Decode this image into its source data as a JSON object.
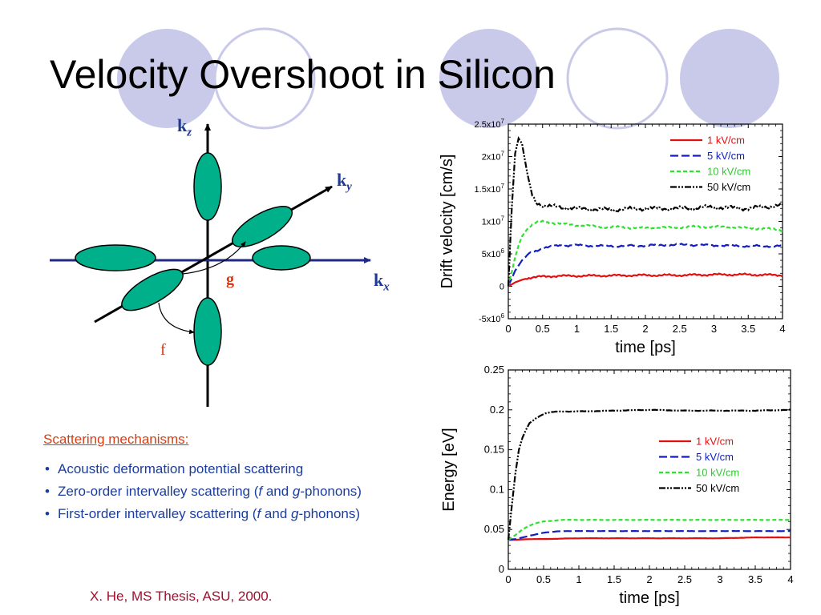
{
  "slide": {
    "title": "Velocity Overshoot in Silicon"
  },
  "diagram": {
    "axes": {
      "kz": "k",
      "kz_sub": "z",
      "ky": "k",
      "ky_sub": "y",
      "kx": "k",
      "kx_sub": "x"
    },
    "g_label": "g",
    "f_label": "f",
    "colors": {
      "valley_fill": "#00b08a",
      "axis": "#1f2a86",
      "label": "#1f3a93",
      "process": "#d43a12"
    }
  },
  "scattering": {
    "heading": "Scattering mechanisms:",
    "items": [
      {
        "text_a": "Acoustic deformation potential scattering",
        "italic_f": "",
        "text_b": "",
        "italic_g": "",
        "text_c": ""
      },
      {
        "text_a": "Zero-order intervalley scattering (",
        "italic_f": "f",
        "text_b": " and ",
        "italic_g": "g",
        "text_c": "-phonons)"
      },
      {
        "text_a": "First-order intervalley scattering (",
        "italic_f": "f",
        "text_b": " and ",
        "italic_g": "g",
        "text_c": "-phonons)"
      }
    ]
  },
  "citation": "X. He, MS Thesis, ASU, 2000.",
  "chart_data": [
    {
      "type": "line",
      "xlabel": "time  [ps]",
      "ylabel": "Drift velocity  [cm/s]",
      "xlim": [
        0,
        4
      ],
      "ylim": [
        -5000000,
        25000000
      ],
      "x_ticks": [
        "0",
        "0.5",
        "1",
        "1.5",
        "2",
        "2.5",
        "3",
        "3.5",
        "4"
      ],
      "y_ticks": [
        {
          "value": 25000000,
          "mant": "2.5x10",
          "exp": "7"
        },
        {
          "value": 20000000,
          "mant": "2x10",
          "exp": "7"
        },
        {
          "value": 15000000,
          "mant": "1.5x10",
          "exp": "7"
        },
        {
          "value": 10000000,
          "mant": "1x10",
          "exp": "7"
        },
        {
          "value": 5000000,
          "mant": "5x10",
          "exp": "6"
        },
        {
          "value": 0,
          "mant": "0",
          "exp": ""
        },
        {
          "value": -5000000,
          "mant": "-5x10",
          "exp": "6"
        }
      ],
      "legend_position": "top-right",
      "series": [
        {
          "name": "1 kV/cm",
          "color": "#e01010",
          "dash": "solid",
          "x": [
            0,
            0.05,
            0.1,
            0.2,
            0.3,
            0.5,
            0.75,
            1,
            1.5,
            2,
            2.5,
            3,
            3.5,
            4
          ],
          "y": [
            0,
            300000,
            600000,
            1000000,
            1300000,
            1500000,
            1600000,
            1600000,
            1650000,
            1700000,
            1700000,
            1800000,
            1800000,
            1700000
          ]
        },
        {
          "name": "5 kV/cm",
          "color": "#1020c0",
          "dash": "longdash",
          "x": [
            0,
            0.05,
            0.1,
            0.2,
            0.3,
            0.5,
            0.75,
            1,
            1.5,
            2,
            2.5,
            3,
            3.5,
            4
          ],
          "y": [
            0,
            1200000,
            2400000,
            4000000,
            5000000,
            5900000,
            6300000,
            6300000,
            6200000,
            6300000,
            6400000,
            6300000,
            6200000,
            6200000
          ]
        },
        {
          "name": "10 kV/cm",
          "color": "#30e030",
          "dash": "dash",
          "x": [
            0,
            0.05,
            0.1,
            0.15,
            0.2,
            0.3,
            0.4,
            0.5,
            0.75,
            1,
            1.5,
            2,
            2.5,
            3,
            3.5,
            4
          ],
          "y": [
            0,
            2200000,
            4500000,
            6300000,
            7700000,
            9200000,
            9800000,
            9900000,
            9700000,
            9400000,
            9100000,
            9000000,
            9100000,
            9200000,
            9000000,
            8700000
          ]
        },
        {
          "name": "50 kV/cm",
          "color": "#000000",
          "dash": "dashdotdot",
          "x": [
            0,
            0.05,
            0.1,
            0.15,
            0.2,
            0.25,
            0.3,
            0.35,
            0.4,
            0.5,
            0.6,
            0.75,
            1,
            1.5,
            2,
            2.5,
            3,
            3.5,
            4
          ],
          "y": [
            0,
            12000000,
            20500000,
            22800000,
            22000000,
            19000000,
            16000000,
            14000000,
            13000000,
            12500000,
            12300000,
            12200000,
            12000000,
            11800000,
            12000000,
            12000000,
            12200000,
            12000000,
            12500000
          ]
        }
      ]
    },
    {
      "type": "line",
      "xlabel": "time  [ps]",
      "ylabel": "Energy  [eV]",
      "xlim": [
        0,
        4
      ],
      "ylim": [
        0,
        0.25
      ],
      "x_ticks": [
        "0",
        "0.5",
        "1",
        "1.5",
        "2",
        "2.5",
        "3",
        "3.5",
        "4"
      ],
      "y_ticks": [
        {
          "value": 0.25,
          "mant": "0.25",
          "exp": ""
        },
        {
          "value": 0.2,
          "mant": "0.2",
          "exp": ""
        },
        {
          "value": 0.15,
          "mant": "0.15",
          "exp": ""
        },
        {
          "value": 0.1,
          "mant": "0.1",
          "exp": ""
        },
        {
          "value": 0.05,
          "mant": "0.05",
          "exp": ""
        },
        {
          "value": 0,
          "mant": "0",
          "exp": ""
        }
      ],
      "legend_position": "center-right",
      "series": [
        {
          "name": "1 kV/cm",
          "color": "#e01010",
          "dash": "solid",
          "x": [
            0,
            0.1,
            0.3,
            0.5,
            1,
            1.5,
            2,
            2.5,
            3,
            3.5,
            4
          ],
          "y": [
            0.037,
            0.037,
            0.038,
            0.038,
            0.039,
            0.039,
            0.039,
            0.039,
            0.039,
            0.04,
            0.04
          ]
        },
        {
          "name": "5 kV/cm",
          "color": "#1020c0",
          "dash": "longdash",
          "x": [
            0,
            0.1,
            0.2,
            0.3,
            0.4,
            0.5,
            0.75,
            1,
            1.5,
            2,
            2.5,
            3,
            3.5,
            4
          ],
          "y": [
            0.037,
            0.038,
            0.04,
            0.042,
            0.044,
            0.046,
            0.048,
            0.048,
            0.048,
            0.048,
            0.048,
            0.048,
            0.048,
            0.048
          ]
        },
        {
          "name": "10 kV/cm",
          "color": "#30e030",
          "dash": "dash",
          "x": [
            0,
            0.1,
            0.2,
            0.3,
            0.4,
            0.5,
            0.75,
            1,
            1.5,
            2,
            2.5,
            3,
            3.5,
            4
          ],
          "y": [
            0.037,
            0.043,
            0.05,
            0.055,
            0.058,
            0.06,
            0.062,
            0.062,
            0.062,
            0.062,
            0.062,
            0.062,
            0.062,
            0.062
          ]
        },
        {
          "name": "50 kV/cm",
          "color": "#000000",
          "dash": "dashdotdot",
          "x": [
            0,
            0.05,
            0.1,
            0.15,
            0.2,
            0.25,
            0.3,
            0.4,
            0.5,
            0.6,
            0.75,
            1,
            1.5,
            2,
            2.5,
            3,
            3.5,
            4
          ],
          "y": [
            0.037,
            0.08,
            0.12,
            0.15,
            0.165,
            0.175,
            0.183,
            0.19,
            0.195,
            0.197,
            0.198,
            0.198,
            0.199,
            0.2,
            0.199,
            0.199,
            0.199,
            0.2
          ]
        }
      ]
    }
  ]
}
